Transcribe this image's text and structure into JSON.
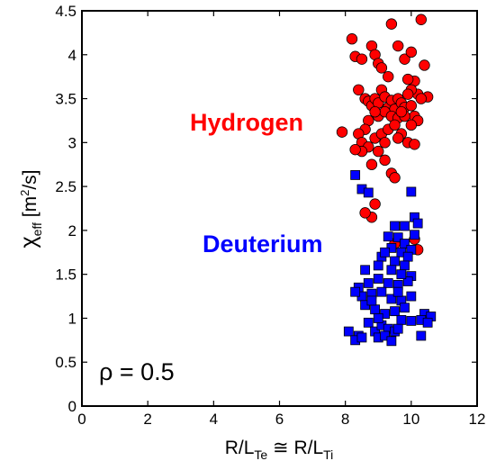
{
  "chart_data": {
    "type": "scatter",
    "xlim": [
      0,
      12
    ],
    "ylim": [
      0,
      4.5
    ],
    "x_ticks": [
      "0",
      "2",
      "4",
      "6",
      "8",
      "10",
      "12"
    ],
    "y_ticks": [
      "0",
      "0.5",
      "1",
      "1.5",
      "2",
      "2.5",
      "3",
      "3.5",
      "4",
      "4.5"
    ],
    "xlabel": {
      "r1": "R/L",
      "s1": "Te",
      "mid": " ≅ R/L",
      "s2": "Ti"
    },
    "ylabel": {
      "chi": "χ",
      "sub": "eff",
      "rest": "  [m",
      "sup": "2",
      "end": "/s]"
    },
    "annotation": "ρ = 0.5",
    "grid": false,
    "series": [
      {
        "name": "Hydrogen",
        "color": "#ff0000",
        "marker": "circle",
        "points": [
          [
            8.2,
            4.18
          ],
          [
            8.3,
            3.98
          ],
          [
            8.4,
            3.6
          ],
          [
            8.5,
            3.95
          ],
          [
            8.6,
            3.5
          ],
          [
            8.8,
            4.1
          ],
          [
            8.9,
            4.0
          ],
          [
            9.0,
            3.9
          ],
          [
            9.1,
            3.85
          ],
          [
            9.4,
            4.35
          ],
          [
            9.6,
            4.1
          ],
          [
            9.8,
            3.95
          ],
          [
            10.0,
            4.03
          ],
          [
            10.1,
            3.7
          ],
          [
            10.3,
            4.4
          ],
          [
            10.4,
            3.88
          ],
          [
            10.5,
            3.52
          ],
          [
            10.2,
            3.55
          ],
          [
            10.0,
            3.6
          ],
          [
            9.9,
            3.72
          ],
          [
            9.3,
            3.75
          ],
          [
            9.1,
            3.6
          ],
          [
            8.7,
            3.47
          ],
          [
            8.8,
            3.42
          ],
          [
            8.9,
            3.5
          ],
          [
            9.0,
            3.45
          ],
          [
            9.2,
            3.52
          ],
          [
            9.3,
            3.4
          ],
          [
            9.4,
            3.48
          ],
          [
            9.5,
            3.38
          ],
          [
            9.6,
            3.5
          ],
          [
            9.7,
            3.45
          ],
          [
            9.8,
            3.4
          ],
          [
            9.9,
            3.55
          ],
          [
            10.0,
            3.42
          ],
          [
            10.1,
            3.3
          ],
          [
            10.2,
            3.25
          ],
          [
            10.3,
            3.5
          ],
          [
            9.0,
            3.3
          ],
          [
            9.2,
            3.35
          ],
          [
            9.4,
            3.3
          ],
          [
            9.6,
            3.28
          ],
          [
            9.8,
            3.3
          ],
          [
            10.0,
            3.2
          ],
          [
            8.9,
            3.35
          ],
          [
            8.7,
            3.25
          ],
          [
            8.6,
            3.15
          ],
          [
            8.4,
            3.1
          ],
          [
            7.9,
            3.12
          ],
          [
            8.5,
            3.0
          ],
          [
            8.7,
            2.95
          ],
          [
            8.9,
            3.05
          ],
          [
            9.1,
            3.1
          ],
          [
            9.3,
            3.15
          ],
          [
            9.5,
            3.2
          ],
          [
            9.7,
            3.1
          ],
          [
            9.9,
            3.0
          ],
          [
            10.1,
            2.98
          ],
          [
            8.5,
            2.9
          ],
          [
            8.8,
            2.75
          ],
          [
            9.2,
            2.8
          ],
          [
            9.4,
            2.65
          ],
          [
            9.5,
            2.6
          ],
          [
            8.3,
            2.92
          ],
          [
            9.6,
            3.05
          ],
          [
            9.0,
            2.9
          ],
          [
            8.9,
            2.3
          ],
          [
            8.8,
            2.15
          ],
          [
            8.6,
            2.2
          ],
          [
            10.1,
            1.9
          ],
          [
            10.2,
            1.78
          ],
          [
            9.5,
            1.85
          ],
          [
            9.2,
            3.0
          ],
          [
            9.7,
            3.35
          ]
        ]
      },
      {
        "name": "Deuterium",
        "color": "#0000ff",
        "marker": "square",
        "points": [
          [
            8.3,
            2.63
          ],
          [
            8.5,
            2.47
          ],
          [
            8.7,
            2.43
          ],
          [
            10.0,
            2.44
          ],
          [
            10.1,
            2.15
          ],
          [
            9.5,
            2.05
          ],
          [
            9.8,
            2.05
          ],
          [
            10.2,
            2.08
          ],
          [
            9.3,
            1.93
          ],
          [
            9.6,
            1.92
          ],
          [
            9.8,
            1.85
          ],
          [
            10.1,
            1.95
          ],
          [
            9.4,
            1.8
          ],
          [
            9.7,
            1.75
          ],
          [
            10.0,
            1.78
          ],
          [
            9.1,
            1.7
          ],
          [
            9.5,
            1.65
          ],
          [
            9.9,
            1.7
          ],
          [
            8.6,
            1.55
          ],
          [
            9.0,
            1.6
          ],
          [
            9.4,
            1.55
          ],
          [
            9.8,
            1.6
          ],
          [
            10.0,
            1.48
          ],
          [
            8.4,
            1.35
          ],
          [
            8.7,
            1.4
          ],
          [
            9.0,
            1.45
          ],
          [
            9.3,
            1.4
          ],
          [
            9.6,
            1.38
          ],
          [
            9.9,
            1.42
          ],
          [
            8.5,
            1.25
          ],
          [
            8.8,
            1.28
          ],
          [
            9.1,
            1.3
          ],
          [
            9.4,
            1.22
          ],
          [
            9.7,
            1.2
          ],
          [
            10.0,
            1.25
          ],
          [
            8.3,
            1.3
          ],
          [
            8.6,
            1.15
          ],
          [
            8.9,
            1.1
          ],
          [
            9.2,
            1.05
          ],
          [
            9.5,
            1.08
          ],
          [
            9.8,
            1.12
          ],
          [
            10.4,
            1.05
          ],
          [
            10.6,
            1.02
          ],
          [
            8.1,
            0.85
          ],
          [
            8.4,
            0.8
          ],
          [
            8.7,
            0.95
          ],
          [
            8.9,
            0.85
          ],
          [
            9.1,
            0.92
          ],
          [
            9.3,
            0.88
          ],
          [
            9.5,
            0.85
          ],
          [
            9.7,
            0.98
          ],
          [
            10.0,
            0.97
          ],
          [
            10.3,
            0.98
          ],
          [
            10.5,
            0.95
          ],
          [
            8.3,
            0.75
          ],
          [
            8.5,
            0.78
          ],
          [
            9.0,
            0.78
          ],
          [
            9.2,
            0.8
          ],
          [
            9.4,
            0.74
          ],
          [
            9.6,
            0.88
          ],
          [
            10.3,
            0.8
          ],
          [
            8.8,
            1.2
          ],
          [
            9.2,
            1.75
          ],
          [
            9.7,
            1.5
          ],
          [
            9.0,
            1.0
          ],
          [
            9.6,
            1.3
          ]
        ]
      }
    ]
  }
}
